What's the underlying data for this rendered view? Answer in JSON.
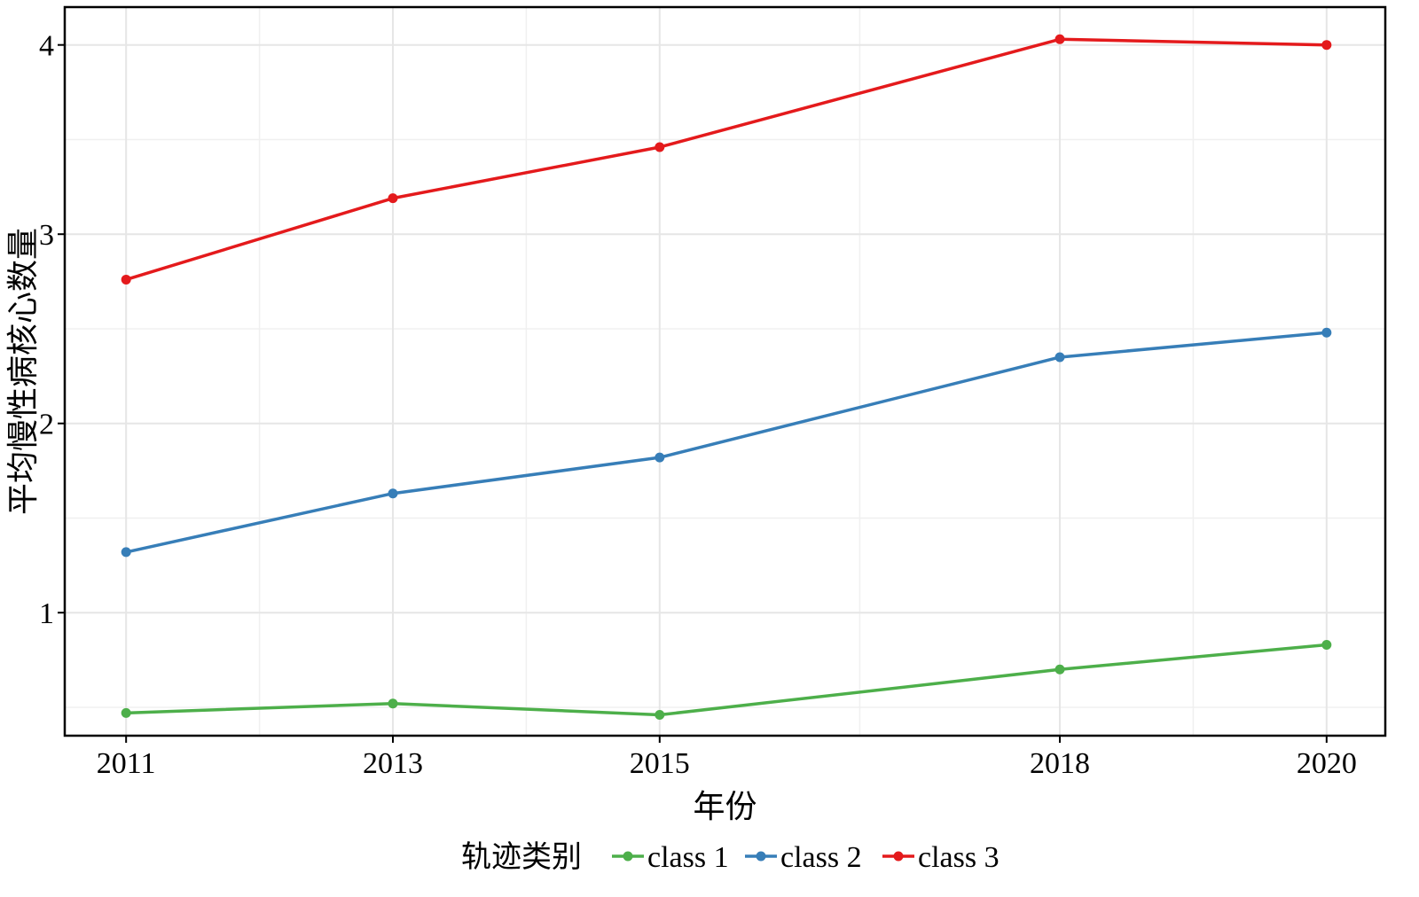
{
  "chart_data": {
    "type": "line",
    "title": "",
    "xlabel": "年份",
    "ylabel": "平均慢性病核心数量",
    "x": [
      2011,
      2013,
      2015,
      2018,
      2020
    ],
    "xlim": [
      2010.54,
      2020.44
    ],
    "ylim": [
      0.35,
      4.2
    ],
    "xticks": [
      2011,
      2013,
      2015,
      2018,
      2020
    ],
    "yticks": [
      1,
      2,
      3,
      4
    ],
    "x_minor_grid": [
      2012,
      2014,
      2016.5,
      2019
    ],
    "y_minor_grid": [
      0.5,
      1.5,
      2.5,
      3.5
    ],
    "grid": true,
    "legend": {
      "title": "轨迹类别",
      "position": "bottom"
    },
    "series": [
      {
        "name": "class 1",
        "color": "#4daf4a",
        "values": [
          0.47,
          0.52,
          0.46,
          0.7,
          0.83
        ]
      },
      {
        "name": "class 2",
        "color": "#377eb8",
        "values": [
          1.32,
          1.63,
          1.82,
          2.35,
          2.48
        ]
      },
      {
        "name": "class 3",
        "color": "#e41a1c",
        "values": [
          2.76,
          3.19,
          3.46,
          4.03,
          4.0
        ]
      }
    ]
  }
}
